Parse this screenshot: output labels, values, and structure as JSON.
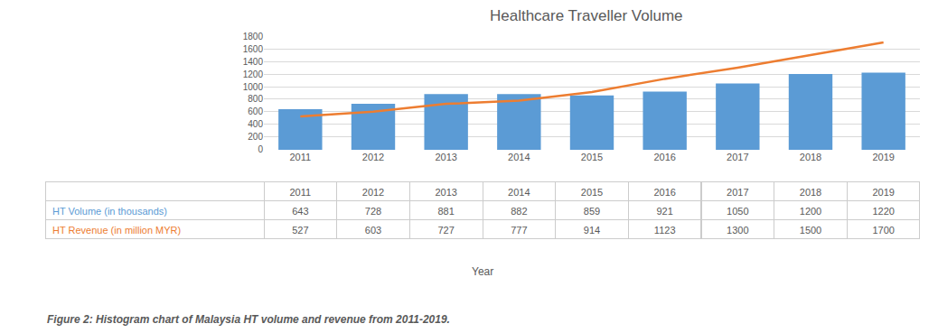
{
  "chart_data": {
    "type": "bar",
    "title": "Healthcare Traveller Volume",
    "xlabel": "Year",
    "caption": "Figure 2: Histogram chart of Malaysia HT volume and revenue from 2011-2019.",
    "categories": [
      "2011",
      "2012",
      "2013",
      "2014",
      "2015",
      "2016",
      "2017",
      "2018",
      "2019"
    ],
    "series": [
      {
        "name": "HT Volume (in thousands)",
        "type": "bar",
        "color": "#5B9BD5",
        "values": [
          643,
          728,
          881,
          882,
          859,
          921,
          1050,
          1200,
          1220
        ]
      },
      {
        "name": "HT Revenue (in million MYR)",
        "type": "line",
        "color": "#ED7D31",
        "axis": "y2",
        "values": [
          527,
          603,
          727,
          777,
          914,
          1123,
          1300,
          1500,
          1700
        ]
      }
    ],
    "ylim": [
      0,
      1800
    ],
    "yticks": [
      0,
      200,
      400,
      600,
      800,
      1000,
      1200,
      1400,
      1600,
      1800
    ],
    "y2lim": [
      0,
      1800
    ],
    "y2ticks": [],
    "grid": true
  }
}
